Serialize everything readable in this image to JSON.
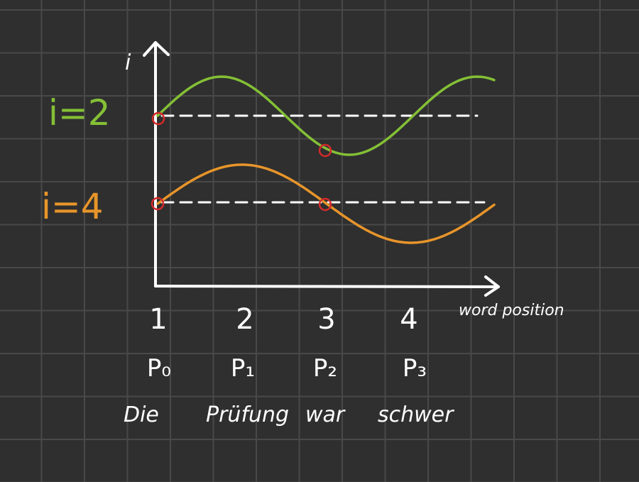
{
  "colors": {
    "background": "#2f2f2f",
    "grid": "#494949",
    "ink": "#ffffff",
    "green": "#84c036",
    "orange": "#e8952a",
    "marker": "#d42a2a"
  },
  "y_axis_label": "i",
  "x_axis_label": "word position",
  "curves": [
    {
      "label": "i=2",
      "color": "#84c036"
    },
    {
      "label": "i=4",
      "color": "#e8952a"
    }
  ],
  "positions": [
    {
      "number": "1",
      "encoding": "P₀",
      "word": "Die"
    },
    {
      "number": "2",
      "encoding": "P₁",
      "word": "Prüfung"
    },
    {
      "number": "3",
      "encoding": "P₂",
      "word": "war"
    },
    {
      "number": "4",
      "encoding": "P₃",
      "word": "schwer"
    }
  ]
}
